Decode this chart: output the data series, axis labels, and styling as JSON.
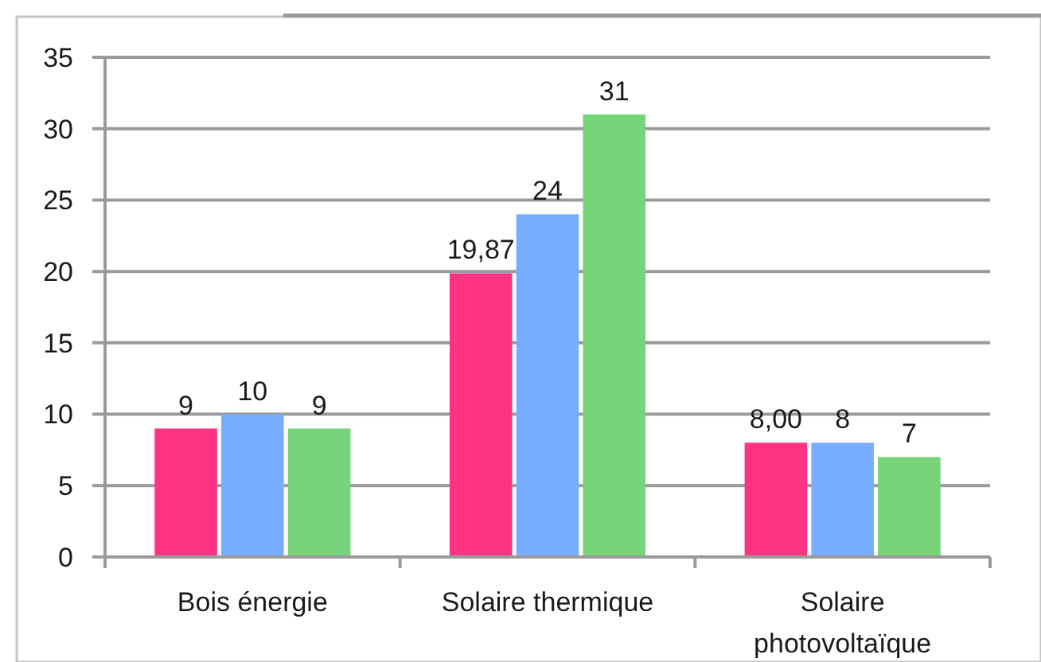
{
  "chart_data": {
    "type": "bar",
    "categories": [
      "Bois énergie",
      "Solaire thermique",
      "Solaire photovoltaïque"
    ],
    "series": [
      {
        "color": "#fe3383",
        "values": [
          9,
          19.87,
          8
        ],
        "value_labels": [
          "9",
          "19,87",
          "8,00"
        ]
      },
      {
        "color": "#78acff",
        "values": [
          10,
          24,
          8
        ],
        "value_labels": [
          "10",
          "24",
          "8"
        ]
      },
      {
        "color": "#76d47a",
        "values": [
          9,
          31,
          7
        ],
        "value_labels": [
          "9",
          "31",
          "7"
        ]
      }
    ],
    "ylim": [
      0,
      35
    ],
    "yticks": [
      0,
      5,
      10,
      15,
      20,
      25,
      30,
      35
    ],
    "grid": "y"
  }
}
